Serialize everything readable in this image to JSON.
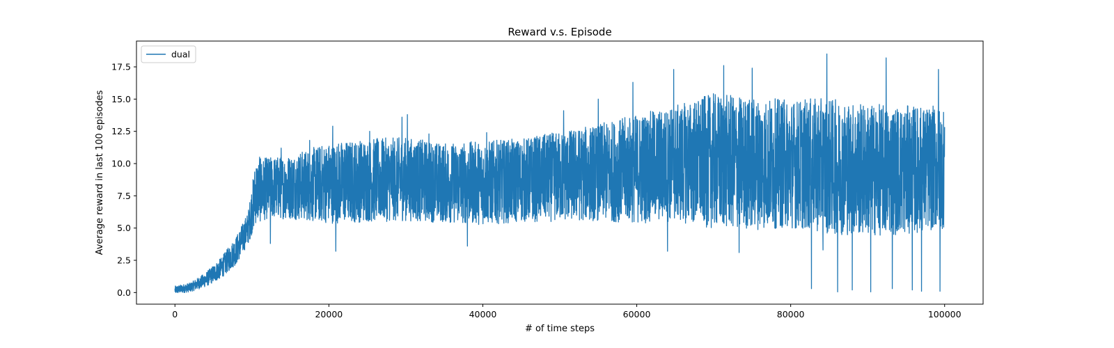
{
  "chart_data": {
    "type": "line",
    "title": "Reward v.s. Episode",
    "xlabel": "# of time steps",
    "ylabel": "Average reward in last 100 episodes",
    "xlim": [
      -5000,
      105000
    ],
    "ylim": [
      -0.9,
      19.5
    ],
    "xticks": [
      0,
      20000,
      40000,
      60000,
      80000,
      100000
    ],
    "xtick_labels": [
      "0",
      "20000",
      "40000",
      "60000",
      "80000",
      "100000"
    ],
    "yticks": [
      0.0,
      2.5,
      5.0,
      7.5,
      10.0,
      12.5,
      15.0,
      17.5
    ],
    "ytick_labels": [
      "0.0",
      "2.5",
      "5.0",
      "7.5",
      "10.0",
      "12.5",
      "15.0",
      "17.5"
    ],
    "grid": false,
    "legend_position": "top-left",
    "series": [
      {
        "name": "dual",
        "color": "#1f77b4",
        "envelope": [
          {
            "x": 0,
            "mean": 0.2,
            "low": 0.0,
            "high": 0.6
          },
          {
            "x": 2000,
            "mean": 0.4,
            "low": 0.1,
            "high": 0.8
          },
          {
            "x": 4000,
            "mean": 1.0,
            "low": 0.5,
            "high": 1.6
          },
          {
            "x": 6000,
            "mean": 1.9,
            "low": 1.2,
            "high": 2.8
          },
          {
            "x": 8000,
            "mean": 3.3,
            "low": 2.4,
            "high": 4.6
          },
          {
            "x": 9500,
            "mean": 5.0,
            "low": 4.0,
            "high": 6.5
          },
          {
            "x": 10500,
            "mean": 7.8,
            "low": 5.5,
            "high": 10.5
          },
          {
            "x": 12000,
            "mean": 8.1,
            "low": 5.8,
            "high": 10.6
          },
          {
            "x": 15000,
            "mean": 8.2,
            "low": 5.8,
            "high": 10.8
          },
          {
            "x": 20000,
            "mean": 8.5,
            "low": 5.5,
            "high": 11.8
          },
          {
            "x": 25000,
            "mean": 8.7,
            "low": 5.5,
            "high": 12.0
          },
          {
            "x": 30000,
            "mean": 8.8,
            "low": 5.5,
            "high": 12.0
          },
          {
            "x": 35000,
            "mean": 8.5,
            "low": 5.3,
            "high": 11.5
          },
          {
            "x": 40000,
            "mean": 8.5,
            "low": 5.3,
            "high": 11.8
          },
          {
            "x": 45000,
            "mean": 8.7,
            "low": 5.5,
            "high": 12.0
          },
          {
            "x": 50000,
            "mean": 9.0,
            "low": 5.5,
            "high": 12.5
          },
          {
            "x": 55000,
            "mean": 9.3,
            "low": 5.5,
            "high": 13.0
          },
          {
            "x": 60000,
            "mean": 9.6,
            "low": 5.5,
            "high": 14.0
          },
          {
            "x": 65000,
            "mean": 10.0,
            "low": 5.5,
            "high": 14.5
          },
          {
            "x": 70000,
            "mean": 10.2,
            "low": 5.0,
            "high": 15.5
          },
          {
            "x": 75000,
            "mean": 10.0,
            "low": 5.0,
            "high": 15.3
          },
          {
            "x": 80000,
            "mean": 10.0,
            "low": 5.0,
            "high": 15.0
          },
          {
            "x": 85000,
            "mean": 9.8,
            "low": 4.5,
            "high": 15.0
          },
          {
            "x": 90000,
            "mean": 9.5,
            "low": 4.5,
            "high": 14.8
          },
          {
            "x": 95000,
            "mean": 9.5,
            "low": 4.5,
            "high": 14.5
          },
          {
            "x": 100000,
            "mean": 9.7,
            "low": 6.0,
            "high": 15.5
          }
        ],
        "spikes": [
          {
            "x": 11000,
            "y": 10.5
          },
          {
            "x": 13800,
            "y": 11.2
          },
          {
            "x": 17500,
            "y": 11.8
          },
          {
            "x": 20500,
            "y": 12.9
          },
          {
            "x": 25300,
            "y": 12.5
          },
          {
            "x": 29500,
            "y": 13.6
          },
          {
            "x": 30200,
            "y": 13.8
          },
          {
            "x": 33000,
            "y": 12.3
          },
          {
            "x": 40500,
            "y": 12.4
          },
          {
            "x": 50500,
            "y": 14.1
          },
          {
            "x": 55000,
            "y": 15.0
          },
          {
            "x": 59500,
            "y": 16.3
          },
          {
            "x": 64800,
            "y": 17.3
          },
          {
            "x": 71300,
            "y": 17.6
          },
          {
            "x": 75000,
            "y": 17.4
          },
          {
            "x": 84700,
            "y": 18.5
          },
          {
            "x": 92400,
            "y": 18.2
          },
          {
            "x": 99200,
            "y": 17.3
          },
          {
            "x": 12400,
            "y": 3.8
          },
          {
            "x": 20900,
            "y": 3.2
          },
          {
            "x": 38000,
            "y": 3.6
          },
          {
            "x": 64000,
            "y": 3.2
          },
          {
            "x": 73300,
            "y": 3.1
          },
          {
            "x": 82700,
            "y": 0.3
          },
          {
            "x": 84200,
            "y": 3.3
          },
          {
            "x": 86100,
            "y": 0.05
          },
          {
            "x": 88000,
            "y": 0.2
          },
          {
            "x": 90400,
            "y": 0.05
          },
          {
            "x": 93200,
            "y": 0.3
          },
          {
            "x": 95800,
            "y": 0.2
          },
          {
            "x": 97000,
            "y": 0.1
          },
          {
            "x": 99400,
            "y": 0.1
          }
        ]
      }
    ]
  }
}
